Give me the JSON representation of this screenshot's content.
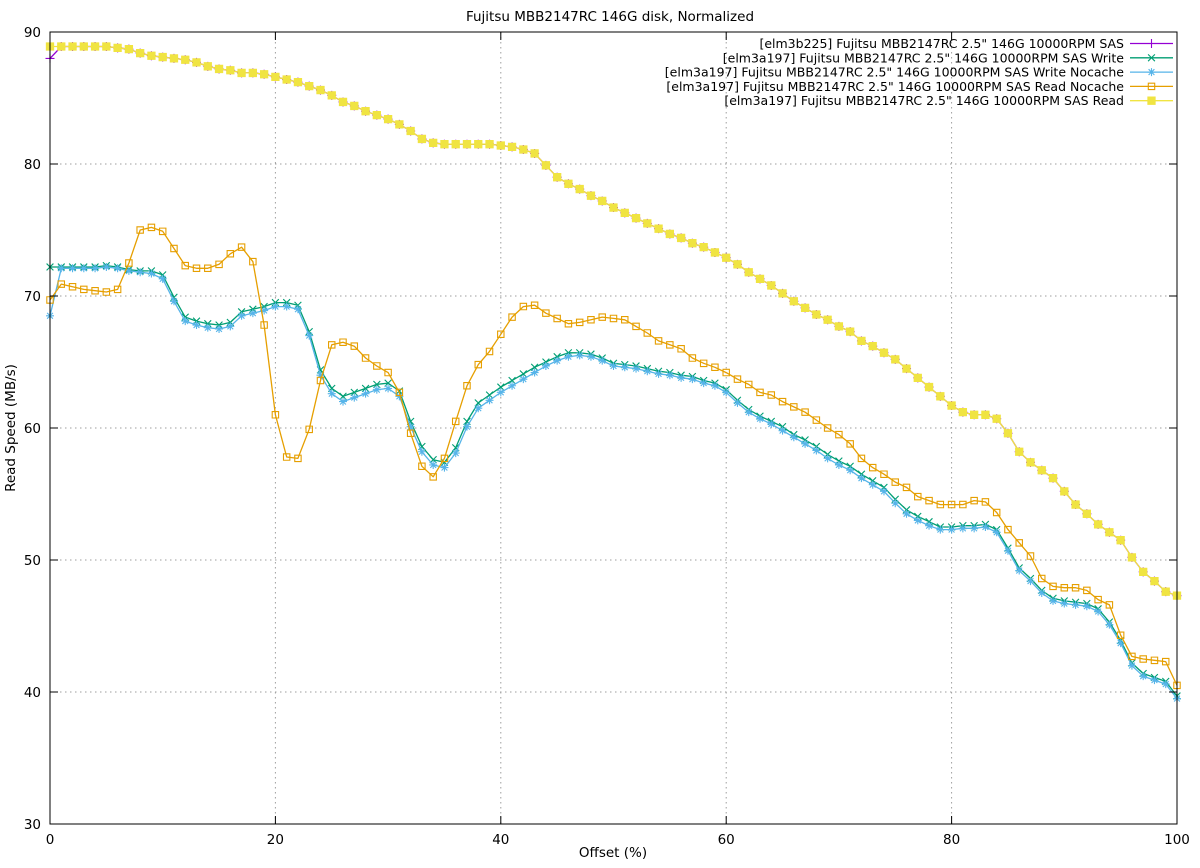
{
  "chart_data": {
    "type": "line",
    "title": "Fujitsu MBB2147RC 146G disk, Normalized",
    "xlabel": "Offset (%)",
    "ylabel": "Read Speed (MB/s)",
    "xlim": [
      0,
      100
    ],
    "ylim": [
      30,
      90
    ],
    "xticks": [
      0,
      20,
      40,
      60,
      80,
      100
    ],
    "yticks": [
      30,
      40,
      50,
      60,
      70,
      80,
      90
    ],
    "grid": "dotted",
    "grid_color": "#9e9e9e",
    "legend_position": "top-right-inside",
    "x_step": 1,
    "x_start": 0,
    "series": [
      {
        "name": "[elm3b225] Fujitsu MBB2147RC 2.5\" 146G 10000RPM SAS",
        "color": "#9400d3",
        "marker": "plus",
        "values": [
          88.0,
          88.9,
          88.9,
          88.9,
          88.9,
          88.9,
          88.8,
          88.7,
          88.4,
          88.2,
          88.1,
          88.0,
          87.9,
          87.7,
          87.4,
          87.2,
          87.1,
          86.9,
          86.9,
          86.8,
          86.6,
          86.4,
          86.2,
          85.9,
          85.6,
          85.2,
          84.7,
          84.4,
          84.0,
          83.7,
          83.4,
          83.0,
          82.5,
          81.9,
          81.6,
          81.5,
          81.5,
          81.5,
          81.5,
          81.5,
          81.4,
          81.3,
          81.1,
          80.8,
          79.9,
          79.0,
          78.5,
          78.1,
          77.6,
          77.2,
          76.7,
          76.3,
          75.9,
          75.5,
          75.1,
          74.7,
          74.4,
          74.0,
          73.7,
          73.3,
          72.9,
          72.4,
          71.8,
          71.3,
          70.8,
          70.2,
          69.6,
          69.1,
          68.6,
          68.2,
          67.7,
          67.3,
          66.6,
          66.2,
          65.7,
          65.2,
          64.5,
          63.8,
          63.1,
          62.4,
          61.7,
          61.2,
          61.0,
          61.0,
          60.7,
          59.6,
          58.2,
          57.4,
          56.8,
          56.2,
          55.2,
          54.2,
          53.5,
          52.7,
          52.1,
          51.5,
          50.2,
          49.1,
          48.4,
          47.6,
          47.3
        ]
      },
      {
        "name": "[elm3a197] Fujitsu MBB2147RC 2.5\" 146G 10000RPM SAS Write",
        "color": "#009e73",
        "marker": "cross",
        "values": [
          72.2,
          72.2,
          72.2,
          72.2,
          72.2,
          72.3,
          72.2,
          72.0,
          71.9,
          71.9,
          71.6,
          69.9,
          68.4,
          68.1,
          67.9,
          67.8,
          68.0,
          68.8,
          69.0,
          69.2,
          69.5,
          69.5,
          69.3,
          67.3,
          64.4,
          63.0,
          62.4,
          62.7,
          63.0,
          63.3,
          63.4,
          62.8,
          60.5,
          58.6,
          57.6,
          57.4,
          58.5,
          60.5,
          61.9,
          62.5,
          63.1,
          63.6,
          64.1,
          64.6,
          65.0,
          65.4,
          65.7,
          65.7,
          65.6,
          65.3,
          64.9,
          64.8,
          64.7,
          64.5,
          64.3,
          64.2,
          64.0,
          63.9,
          63.6,
          63.4,
          62.9,
          62.1,
          61.4,
          60.9,
          60.5,
          60.1,
          59.5,
          59.1,
          58.6,
          58.0,
          57.5,
          57.1,
          56.5,
          56.0,
          55.5,
          54.6,
          53.8,
          53.3,
          52.9,
          52.5,
          52.5,
          52.6,
          52.6,
          52.7,
          52.3,
          50.9,
          49.4,
          48.6,
          47.7,
          47.1,
          46.9,
          46.8,
          46.7,
          46.3,
          45.3,
          43.9,
          42.2,
          41.4,
          41.1,
          40.8,
          39.7
        ]
      },
      {
        "name": "[elm3a197] Fujitsu MBB2147RC 2.5\" 146G 10000RPM SAS Write Nocache",
        "color": "#56b4e9",
        "marker": "asterisk",
        "values": [
          68.5,
          72.1,
          72.1,
          72.1,
          72.1,
          72.2,
          72.1,
          71.9,
          71.8,
          71.7,
          71.3,
          69.6,
          68.1,
          67.8,
          67.6,
          67.5,
          67.7,
          68.5,
          68.7,
          68.9,
          69.2,
          69.2,
          69.0,
          67.0,
          64.0,
          62.6,
          62.0,
          62.3,
          62.6,
          62.9,
          63.0,
          62.4,
          60.1,
          58.2,
          57.2,
          57.0,
          58.1,
          60.1,
          61.5,
          62.1,
          62.7,
          63.2,
          63.7,
          64.2,
          64.7,
          65.1,
          65.4,
          65.5,
          65.4,
          65.1,
          64.7,
          64.6,
          64.5,
          64.3,
          64.1,
          64.0,
          63.8,
          63.7,
          63.4,
          63.2,
          62.7,
          61.9,
          61.2,
          60.7,
          60.3,
          59.8,
          59.3,
          58.8,
          58.3,
          57.7,
          57.2,
          56.8,
          56.2,
          55.7,
          55.2,
          54.3,
          53.5,
          53.0,
          52.6,
          52.3,
          52.3,
          52.4,
          52.4,
          52.5,
          52.1,
          50.7,
          49.2,
          48.4,
          47.5,
          46.9,
          46.7,
          46.6,
          46.5,
          46.1,
          45.1,
          43.7,
          42.0,
          41.2,
          40.9,
          40.6,
          39.5
        ]
      },
      {
        "name": "[elm3a197] Fujitsu MBB2147RC 2.5\" 146G 10000RPM SAS Read Nocache",
        "color": "#e69f00",
        "marker": "open-square",
        "values": [
          69.7,
          70.9,
          70.7,
          70.5,
          70.4,
          70.3,
          70.5,
          72.5,
          75.0,
          75.2,
          74.9,
          73.6,
          72.3,
          72.1,
          72.1,
          72.4,
          73.2,
          73.7,
          72.6,
          67.8,
          61.0,
          57.8,
          57.7,
          59.9,
          63.6,
          66.3,
          66.5,
          66.2,
          65.3,
          64.7,
          64.2,
          62.7,
          59.6,
          57.1,
          56.3,
          57.7,
          60.5,
          63.2,
          64.8,
          65.8,
          67.1,
          68.4,
          69.2,
          69.3,
          68.7,
          68.3,
          67.9,
          68.0,
          68.2,
          68.4,
          68.3,
          68.2,
          67.7,
          67.2,
          66.6,
          66.3,
          66.0,
          65.3,
          64.9,
          64.6,
          64.2,
          63.7,
          63.3,
          62.7,
          62.5,
          62.0,
          61.6,
          61.2,
          60.6,
          60.0,
          59.5,
          58.8,
          57.7,
          57.0,
          56.5,
          55.9,
          55.5,
          54.8,
          54.5,
          54.2,
          54.2,
          54.2,
          54.5,
          54.4,
          53.6,
          52.3,
          51.3,
          50.3,
          48.6,
          48.0,
          47.9,
          47.9,
          47.7,
          47.0,
          46.6,
          44.3,
          42.7,
          42.5,
          42.4,
          42.3,
          40.5
        ]
      },
      {
        "name": "[elm3a197] Fujitsu MBB2147RC 2.5\" 146G 10000RPM SAS Read",
        "color": "#f0e442",
        "marker": "filled-square",
        "values": [
          88.9,
          88.9,
          88.9,
          88.9,
          88.9,
          88.9,
          88.8,
          88.7,
          88.4,
          88.2,
          88.1,
          88.0,
          87.9,
          87.7,
          87.4,
          87.2,
          87.1,
          86.9,
          86.9,
          86.8,
          86.6,
          86.4,
          86.2,
          85.9,
          85.6,
          85.2,
          84.7,
          84.4,
          84.0,
          83.7,
          83.4,
          83.0,
          82.5,
          81.9,
          81.6,
          81.5,
          81.5,
          81.5,
          81.5,
          81.5,
          81.4,
          81.3,
          81.1,
          80.8,
          79.9,
          79.0,
          78.5,
          78.1,
          77.6,
          77.2,
          76.7,
          76.3,
          75.9,
          75.5,
          75.1,
          74.7,
          74.4,
          74.0,
          73.7,
          73.3,
          72.9,
          72.4,
          71.8,
          71.3,
          70.8,
          70.2,
          69.6,
          69.1,
          68.6,
          68.2,
          67.7,
          67.3,
          66.6,
          66.2,
          65.7,
          65.2,
          64.5,
          63.8,
          63.1,
          62.4,
          61.7,
          61.2,
          61.0,
          61.0,
          60.7,
          59.6,
          58.2,
          57.4,
          56.8,
          56.2,
          55.2,
          54.2,
          53.5,
          52.7,
          52.1,
          51.5,
          50.2,
          49.1,
          48.4,
          47.6,
          47.3
        ]
      }
    ]
  }
}
